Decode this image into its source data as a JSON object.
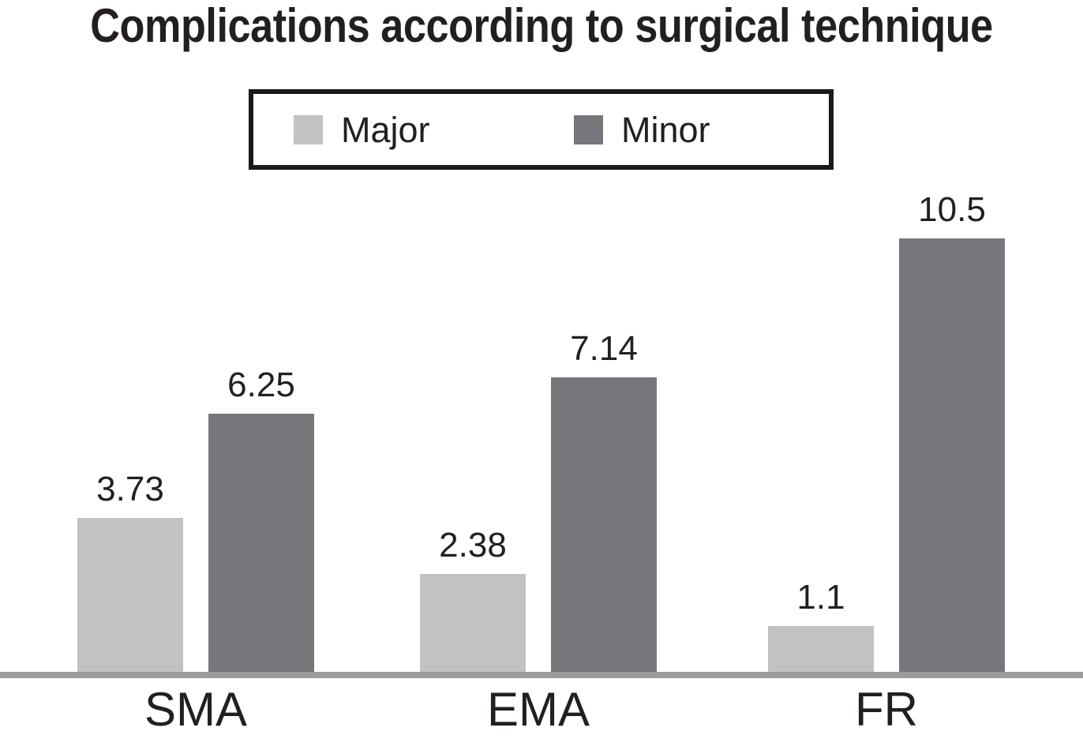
{
  "title": "Complications according to surgical technique",
  "legend": {
    "items": [
      {
        "label": "Major",
        "color": "#c0c2c4"
      },
      {
        "label": "Minor",
        "color": "#76777b"
      }
    ]
  },
  "chart_data": {
    "type": "bar",
    "title": "Complications according to surgical technique",
    "categories": [
      "SMA",
      "EMA",
      "FR"
    ],
    "series": [
      {
        "name": "Major",
        "color": "#c0c2c4",
        "values": [
          3.73,
          2.38,
          1.1
        ],
        "value_labels": [
          "3.73",
          "2.38",
          "1.1"
        ]
      },
      {
        "name": "Minor",
        "color": "#76777b",
        "values": [
          6.25,
          7.14,
          10.5
        ],
        "value_labels": [
          "6.25",
          "7.14",
          "10.5"
        ]
      }
    ],
    "xlabel": "",
    "ylabel": "",
    "ylim": [
      0,
      12.2
    ],
    "grid": false,
    "y_axis_shown": false,
    "value_labels_shown": true,
    "legend_position": "top-center",
    "axis_line_color": "#9b9b9d",
    "text_color": "#231f20",
    "background_color": "#ffffff"
  }
}
